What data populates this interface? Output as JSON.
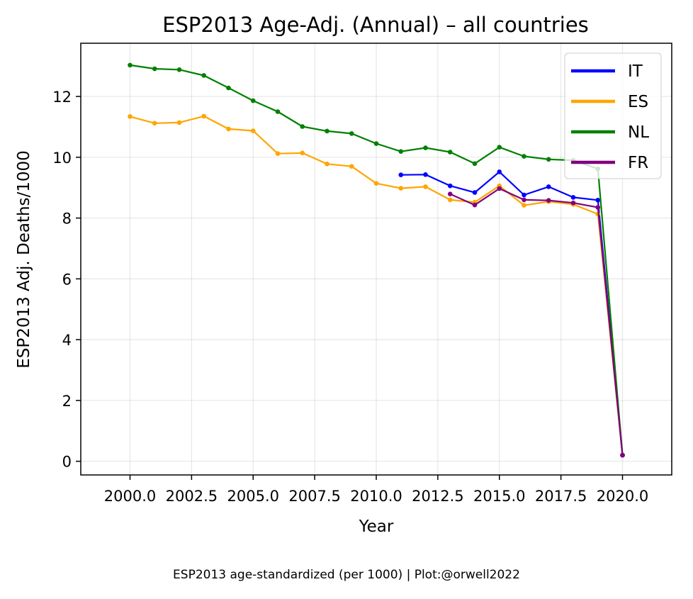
{
  "chart_data": {
    "type": "line",
    "title": "ESP2013 Age-Adj. (Annual) – all countries",
    "xlabel": "Year",
    "ylabel": "ESP2013 Adj. Deaths/1000",
    "xlim": [
      1998.0,
      2022.0
    ],
    "ylim": [
      -0.45,
      13.75
    ],
    "xticks": [
      2000.0,
      2002.5,
      2005.0,
      2007.5,
      2010.0,
      2012.5,
      2015.0,
      2017.5,
      2020.0
    ],
    "xtick_labels": [
      "2000.0",
      "2002.5",
      "2005.0",
      "2007.5",
      "2010.0",
      "2012.5",
      "2015.0",
      "2017.5",
      "2020.0"
    ],
    "yticks": [
      0,
      2,
      4,
      6,
      8,
      10,
      12
    ],
    "ytick_labels": [
      "0",
      "2",
      "4",
      "6",
      "8",
      "10",
      "12"
    ],
    "grid": true,
    "legend_position": "top-right",
    "series": [
      {
        "name": "IT",
        "color": "#0000ff",
        "x": [
          2011,
          2012,
          2013,
          2014,
          2015,
          2016,
          2017,
          2018,
          2019,
          2020
        ],
        "y": [
          9.42,
          9.43,
          9.06,
          8.84,
          9.52,
          8.76,
          9.03,
          8.68,
          8.59,
          0.2
        ]
      },
      {
        "name": "ES",
        "color": "#ffa500",
        "x": [
          2000,
          2001,
          2002,
          2003,
          2004,
          2005,
          2006,
          2007,
          2008,
          2009,
          2010,
          2011,
          2012,
          2013,
          2014,
          2015,
          2016,
          2017,
          2018,
          2019,
          2020
        ],
        "y": [
          11.34,
          11.12,
          11.14,
          11.35,
          10.93,
          10.87,
          10.12,
          10.14,
          9.78,
          9.7,
          9.14,
          8.98,
          9.03,
          8.6,
          8.52,
          9.06,
          8.42,
          8.54,
          8.45,
          8.13,
          0.2
        ]
      },
      {
        "name": "NL",
        "color": "#008000",
        "x": [
          2000,
          2001,
          2002,
          2003,
          2004,
          2005,
          2006,
          2007,
          2008,
          2009,
          2010,
          2011,
          2012,
          2013,
          2014,
          2015,
          2016,
          2017,
          2018,
          2019,
          2020
        ],
        "y": [
          13.03,
          12.91,
          12.88,
          12.69,
          12.28,
          11.86,
          11.5,
          11.01,
          10.86,
          10.78,
          10.45,
          10.19,
          10.31,
          10.17,
          9.79,
          10.33,
          10.03,
          9.93,
          9.9,
          9.62,
          0.2
        ]
      },
      {
        "name": "FR",
        "color": "#800080",
        "x": [
          2013,
          2014,
          2015,
          2016,
          2017,
          2018,
          2019,
          2020
        ],
        "y": [
          8.79,
          8.43,
          8.97,
          8.6,
          8.58,
          8.5,
          8.35,
          0.2
        ]
      }
    ]
  },
  "footer": {
    "caption": "ESP2013 age-standardized (per 1000) | Plot:@orwell2022"
  }
}
